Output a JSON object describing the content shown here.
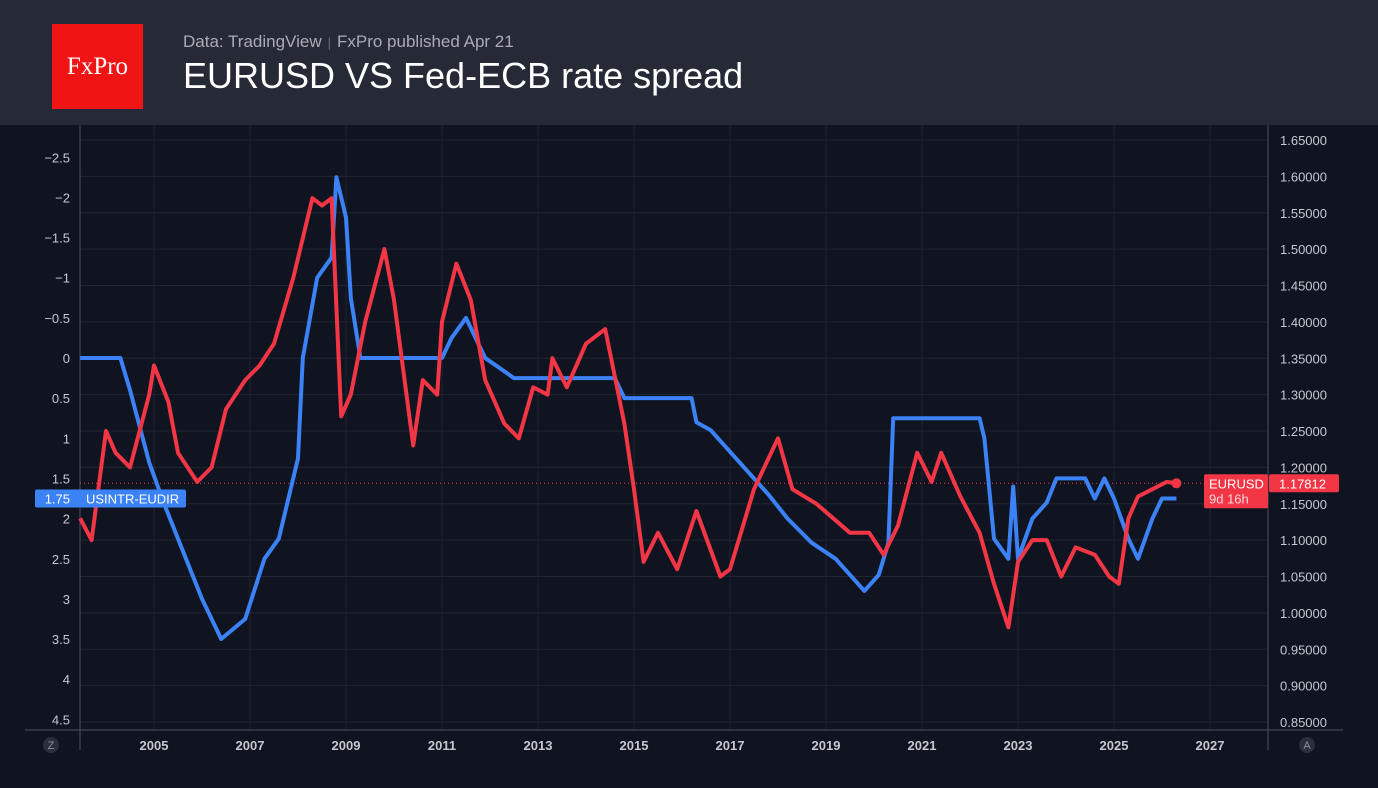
{
  "header": {
    "logo": "FxPro",
    "source": "Data: TradingView",
    "published": "FxPro published Apr 21",
    "title": "EURUSD VS Fed-ECB rate spread"
  },
  "chart_data": {
    "type": "line",
    "title": "EURUSD VS Fed-ECB rate spread",
    "x_ticks": [
      "2005",
      "2007",
      "2009",
      "2011",
      "2013",
      "2015",
      "2017",
      "2019",
      "2021",
      "2023",
      "2025",
      "2027"
    ],
    "left_axis": {
      "ticks": [
        "−2.5",
        "−2",
        "−1.5",
        "−1",
        "−0.5",
        "0",
        "0.5",
        "1",
        "1.5",
        "2",
        "2.5",
        "3",
        "3.5",
        "4",
        "4.5"
      ],
      "range": [
        -2.5,
        4.5
      ],
      "inverted": true
    },
    "right_axis": {
      "ticks": [
        "1.65000",
        "1.60000",
        "1.55000",
        "1.50000",
        "1.45000",
        "1.40000",
        "1.35000",
        "1.30000",
        "1.25000",
        "1.20000",
        "1.15000",
        "1.10000",
        "1.05000",
        "1.00000",
        "0.95000",
        "0.90000",
        "0.85000"
      ],
      "range": [
        0.85,
        1.65
      ]
    },
    "xlim": [
      2003.46,
      2028.2
    ],
    "grid": true,
    "corner_left": "Z",
    "corner_right": "A",
    "series": [
      {
        "name": "USINTR-EUDIR",
        "axis": "left",
        "color": "#3b82f6",
        "last_value": "1.75",
        "x": [
          2003.46,
          2004.3,
          2004.5,
          2004.9,
          2005.2,
          2005.5,
          2006.0,
          2006.4,
          2006.9,
          2007.3,
          2007.6,
          2008.0,
          2008.1,
          2008.4,
          2008.7,
          2008.8,
          2009.0,
          2009.1,
          2009.3,
          2011.0,
          2011.2,
          2011.5,
          2011.9,
          2012.5,
          2014.6,
          2014.8,
          2016.2,
          2016.3,
          2016.6,
          2017.2,
          2017.8,
          2018.2,
          2018.7,
          2019.2,
          2019.8,
          2020.1,
          2020.3,
          2020.4,
          2022.2,
          2022.3,
          2022.5,
          2022.8,
          2022.9,
          2023.0,
          2023.3,
          2023.6,
          2023.8,
          2024.4,
          2024.6,
          2024.8,
          2025.0,
          2025.3,
          2025.5,
          2025.8,
          2026.0,
          2026.3
        ],
        "y": [
          0,
          0,
          0.4,
          1.3,
          1.8,
          2.25,
          3.0,
          3.5,
          3.25,
          2.5,
          2.25,
          1.25,
          0,
          -1,
          -1.25,
          -2.25,
          -1.75,
          -0.75,
          0,
          0,
          -0.25,
          -0.5,
          0,
          0.25,
          0.25,
          0.5,
          0.5,
          0.8,
          0.9,
          1.3,
          1.7,
          2.0,
          2.3,
          2.5,
          2.9,
          2.7,
          2.3,
          0.75,
          0.75,
          1.0,
          2.25,
          2.5,
          1.6,
          2.5,
          2.0,
          1.8,
          1.5,
          1.5,
          1.75,
          1.5,
          1.75,
          2.25,
          2.5,
          2.0,
          1.75,
          1.75
        ]
      },
      {
        "name": "EURUSD",
        "axis": "right",
        "color": "#f23645",
        "last_value": "1.17812",
        "countdown": "9d 16h",
        "x": [
          2003.46,
          2003.7,
          2004.0,
          2004.2,
          2004.5,
          2004.9,
          2005.0,
          2005.3,
          2005.5,
          2005.9,
          2006.2,
          2006.5,
          2006.9,
          2007.2,
          2007.5,
          2007.9,
          2008.3,
          2008.5,
          2008.7,
          2008.9,
          2009.1,
          2009.4,
          2009.8,
          2010.0,
          2010.4,
          2010.6,
          2010.9,
          2011.0,
          2011.3,
          2011.6,
          2011.9,
          2012.3,
          2012.6,
          2012.9,
          2013.2,
          2013.3,
          2013.6,
          2014.0,
          2014.4,
          2014.8,
          2015.0,
          2015.2,
          2015.5,
          2015.9,
          2016.3,
          2016.8,
          2017.0,
          2017.5,
          2018.0,
          2018.3,
          2018.8,
          2019.5,
          2019.9,
          2020.2,
          2020.5,
          2020.9,
          2021.2,
          2021.4,
          2021.8,
          2022.2,
          2022.5,
          2022.8,
          2023.0,
          2023.3,
          2023.6,
          2023.9,
          2024.2,
          2024.6,
          2024.9,
          2025.1,
          2025.3,
          2025.5,
          2025.8,
          2026.1,
          2026.3
        ],
        "y": [
          1.13,
          1.1,
          1.25,
          1.22,
          1.2,
          1.3,
          1.34,
          1.29,
          1.22,
          1.18,
          1.2,
          1.28,
          1.32,
          1.34,
          1.37,
          1.46,
          1.57,
          1.56,
          1.57,
          1.27,
          1.3,
          1.4,
          1.5,
          1.43,
          1.23,
          1.32,
          1.3,
          1.4,
          1.48,
          1.43,
          1.32,
          1.26,
          1.24,
          1.31,
          1.3,
          1.35,
          1.31,
          1.37,
          1.39,
          1.26,
          1.17,
          1.07,
          1.11,
          1.06,
          1.14,
          1.05,
          1.06,
          1.17,
          1.24,
          1.17,
          1.15,
          1.11,
          1.11,
          1.08,
          1.12,
          1.22,
          1.18,
          1.22,
          1.16,
          1.11,
          1.04,
          0.98,
          1.07,
          1.1,
          1.1,
          1.05,
          1.09,
          1.08,
          1.05,
          1.04,
          1.13,
          1.16,
          1.17,
          1.18,
          1.178
        ]
      }
    ]
  }
}
